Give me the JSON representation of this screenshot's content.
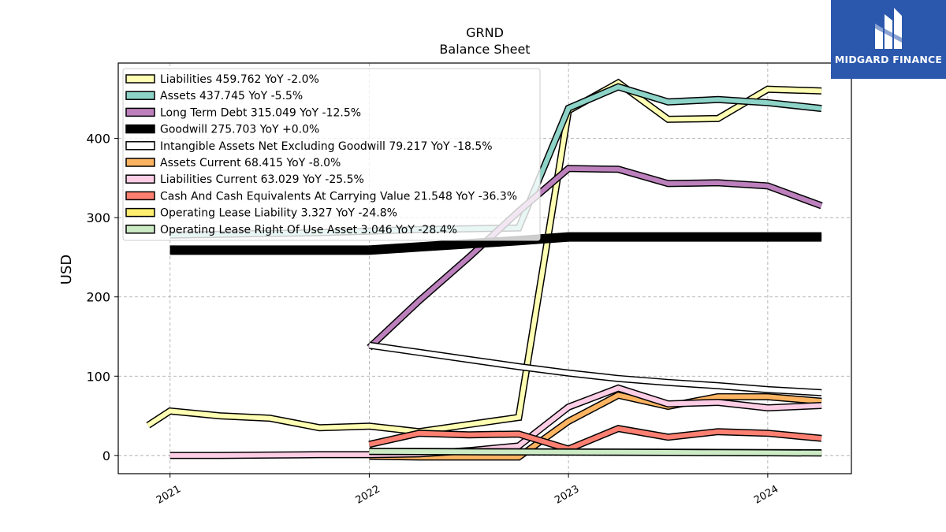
{
  "brand": {
    "name": "MIDGARD FINANCE",
    "bg_color": "#2b58ad"
  },
  "chart_data": {
    "type": "line",
    "title": "GRND",
    "subtitle": "Balance  Sheet",
    "ylabel": "USD",
    "xlabel": "",
    "ylim": [
      -23,
      495
    ],
    "xlim": [
      2020.74,
      2024.42
    ],
    "yticks": [
      0,
      100,
      200,
      300,
      400
    ],
    "xticks": [
      {
        "value": 2021,
        "label": "2021"
      },
      {
        "value": 2022,
        "label": "2022"
      },
      {
        "value": 2023,
        "label": "2023"
      },
      {
        "value": 2024,
        "label": "2024"
      }
    ],
    "grid": true,
    "legend_position": "top-left",
    "series": [
      {
        "name": "Liabilities  459.762 YoY -2.0%",
        "color": "#ffffb3",
        "width": 6,
        "x": [
          2020.89,
          2021.0,
          2021.25,
          2021.5,
          2021.75,
          2022.0,
          2022.25,
          2022.5,
          2022.75,
          2023.0,
          2023.25,
          2023.5,
          2023.75,
          2024.0,
          2024.27
        ],
        "y": [
          38,
          56,
          50,
          47,
          35,
          37,
          30,
          39,
          48,
          435,
          470,
          424,
          425,
          462,
          459.762
        ]
      },
      {
        "name": "Assets  437.745 YoY -5.5%",
        "color": "#8dd3c7",
        "width": 6,
        "x": [
          2021.0,
          2021.25,
          2021.5,
          2021.75,
          2022.0,
          2022.25,
          2022.5,
          2022.75,
          2023.0,
          2023.25,
          2023.5,
          2023.75,
          2024.0,
          2024.27
        ],
        "y": [
          278,
          279,
          280,
          281,
          283,
          285,
          286,
          287,
          438,
          465,
          446,
          449,
          445,
          437.745
        ]
      },
      {
        "name": "Long Term Debt  315.049 YoY -12.5%",
        "color": "#bc80bd",
        "width": 6,
        "x": [
          2022.0,
          2022.25,
          2022.5,
          2022.75,
          2023.0,
          2023.25,
          2023.5,
          2023.75,
          2024.0,
          2024.27
        ],
        "y": [
          136,
          195,
          250,
          308,
          362,
          361,
          343,
          344,
          340,
          315.049
        ]
      },
      {
        "name": "Goodwill  275.703 YoY +0.0%",
        "color": "#000000",
        "width": 9,
        "x": [
          2021.0,
          2022.0,
          2022.25,
          2022.5,
          2022.75,
          2023.0,
          2023.25,
          2023.5,
          2023.75,
          2024.0,
          2024.27
        ],
        "y": [
          259,
          259,
          263,
          267,
          271,
          275.703,
          275.703,
          275.703,
          275.703,
          275.703,
          275.703
        ]
      },
      {
        "name": "Intangible Assets Net Excluding Goodwill  79.217 YoY -18.5%",
        "color": "#ffffff",
        "width": 6,
        "x": [
          2022.0,
          2022.25,
          2022.5,
          2022.75,
          2023.0,
          2023.25,
          2023.5,
          2023.75,
          2024.0,
          2024.27
        ],
        "y": [
          139,
          130,
          121,
          112,
          104,
          97,
          92,
          88,
          83,
          79.217
        ]
      },
      {
        "name": "Assets Current  68.415 YoY -8.0%",
        "color": "#fdb462",
        "width": 6,
        "x": [
          2022.0,
          2022.25,
          2022.5,
          2022.75,
          2023.0,
          2023.25,
          2023.5,
          2023.75,
          2024.0,
          2024.27
        ],
        "y": [
          -1,
          -2,
          -2,
          -2,
          43,
          76,
          62,
          74,
          74,
          68.415
        ]
      },
      {
        "name": "Liabilities Current  63.029 YoY -25.5%",
        "color": "#fccde5",
        "width": 6,
        "x": [
          2021.0,
          2021.25,
          2021.5,
          2021.75,
          2022.0,
          2022.25,
          2022.5,
          2022.75,
          2023.0,
          2023.25,
          2023.5,
          2023.75,
          2024.0,
          2024.27
        ],
        "y": [
          0,
          0,
          0.5,
          1,
          1,
          2,
          6,
          12,
          61,
          85,
          65,
          67,
          60,
          63.029
        ]
      },
      {
        "name": "Cash And Cash Equivalents At Carrying Value  21.548 YoY -36.3%",
        "color": "#fb8072",
        "width": 6,
        "x": [
          2022.0,
          2022.25,
          2022.5,
          2022.75,
          2023.0,
          2023.25,
          2023.5,
          2023.75,
          2024.0,
          2024.27
        ],
        "y": [
          14,
          28,
          26,
          27,
          8,
          34,
          23,
          30,
          28,
          21.548
        ]
      },
      {
        "name": "Operating Lease Liability  3.327 YoY -24.8%",
        "color": "#ffed6f",
        "width": 6,
        "x": [
          2022.0,
          2022.25,
          2022.5,
          2022.75,
          2023.0,
          2023.25,
          2023.5,
          2023.75,
          2024.0,
          2024.27
        ],
        "y": [
          5,
          5,
          4.8,
          4.6,
          4.4,
          4.2,
          4,
          3.8,
          3.5,
          3.327
        ]
      },
      {
        "name": "Operating Lease Right Of Use Asset  3.046 YoY -28.4%",
        "color": "#ccebc5",
        "width": 6,
        "x": [
          2022.0,
          2022.25,
          2022.5,
          2022.75,
          2023.0,
          2023.25,
          2023.5,
          2023.75,
          2024.0,
          2024.27
        ],
        "y": [
          5,
          4.8,
          4.6,
          4.4,
          4.2,
          4,
          3.8,
          3.5,
          3.3,
          3.046
        ]
      }
    ]
  }
}
